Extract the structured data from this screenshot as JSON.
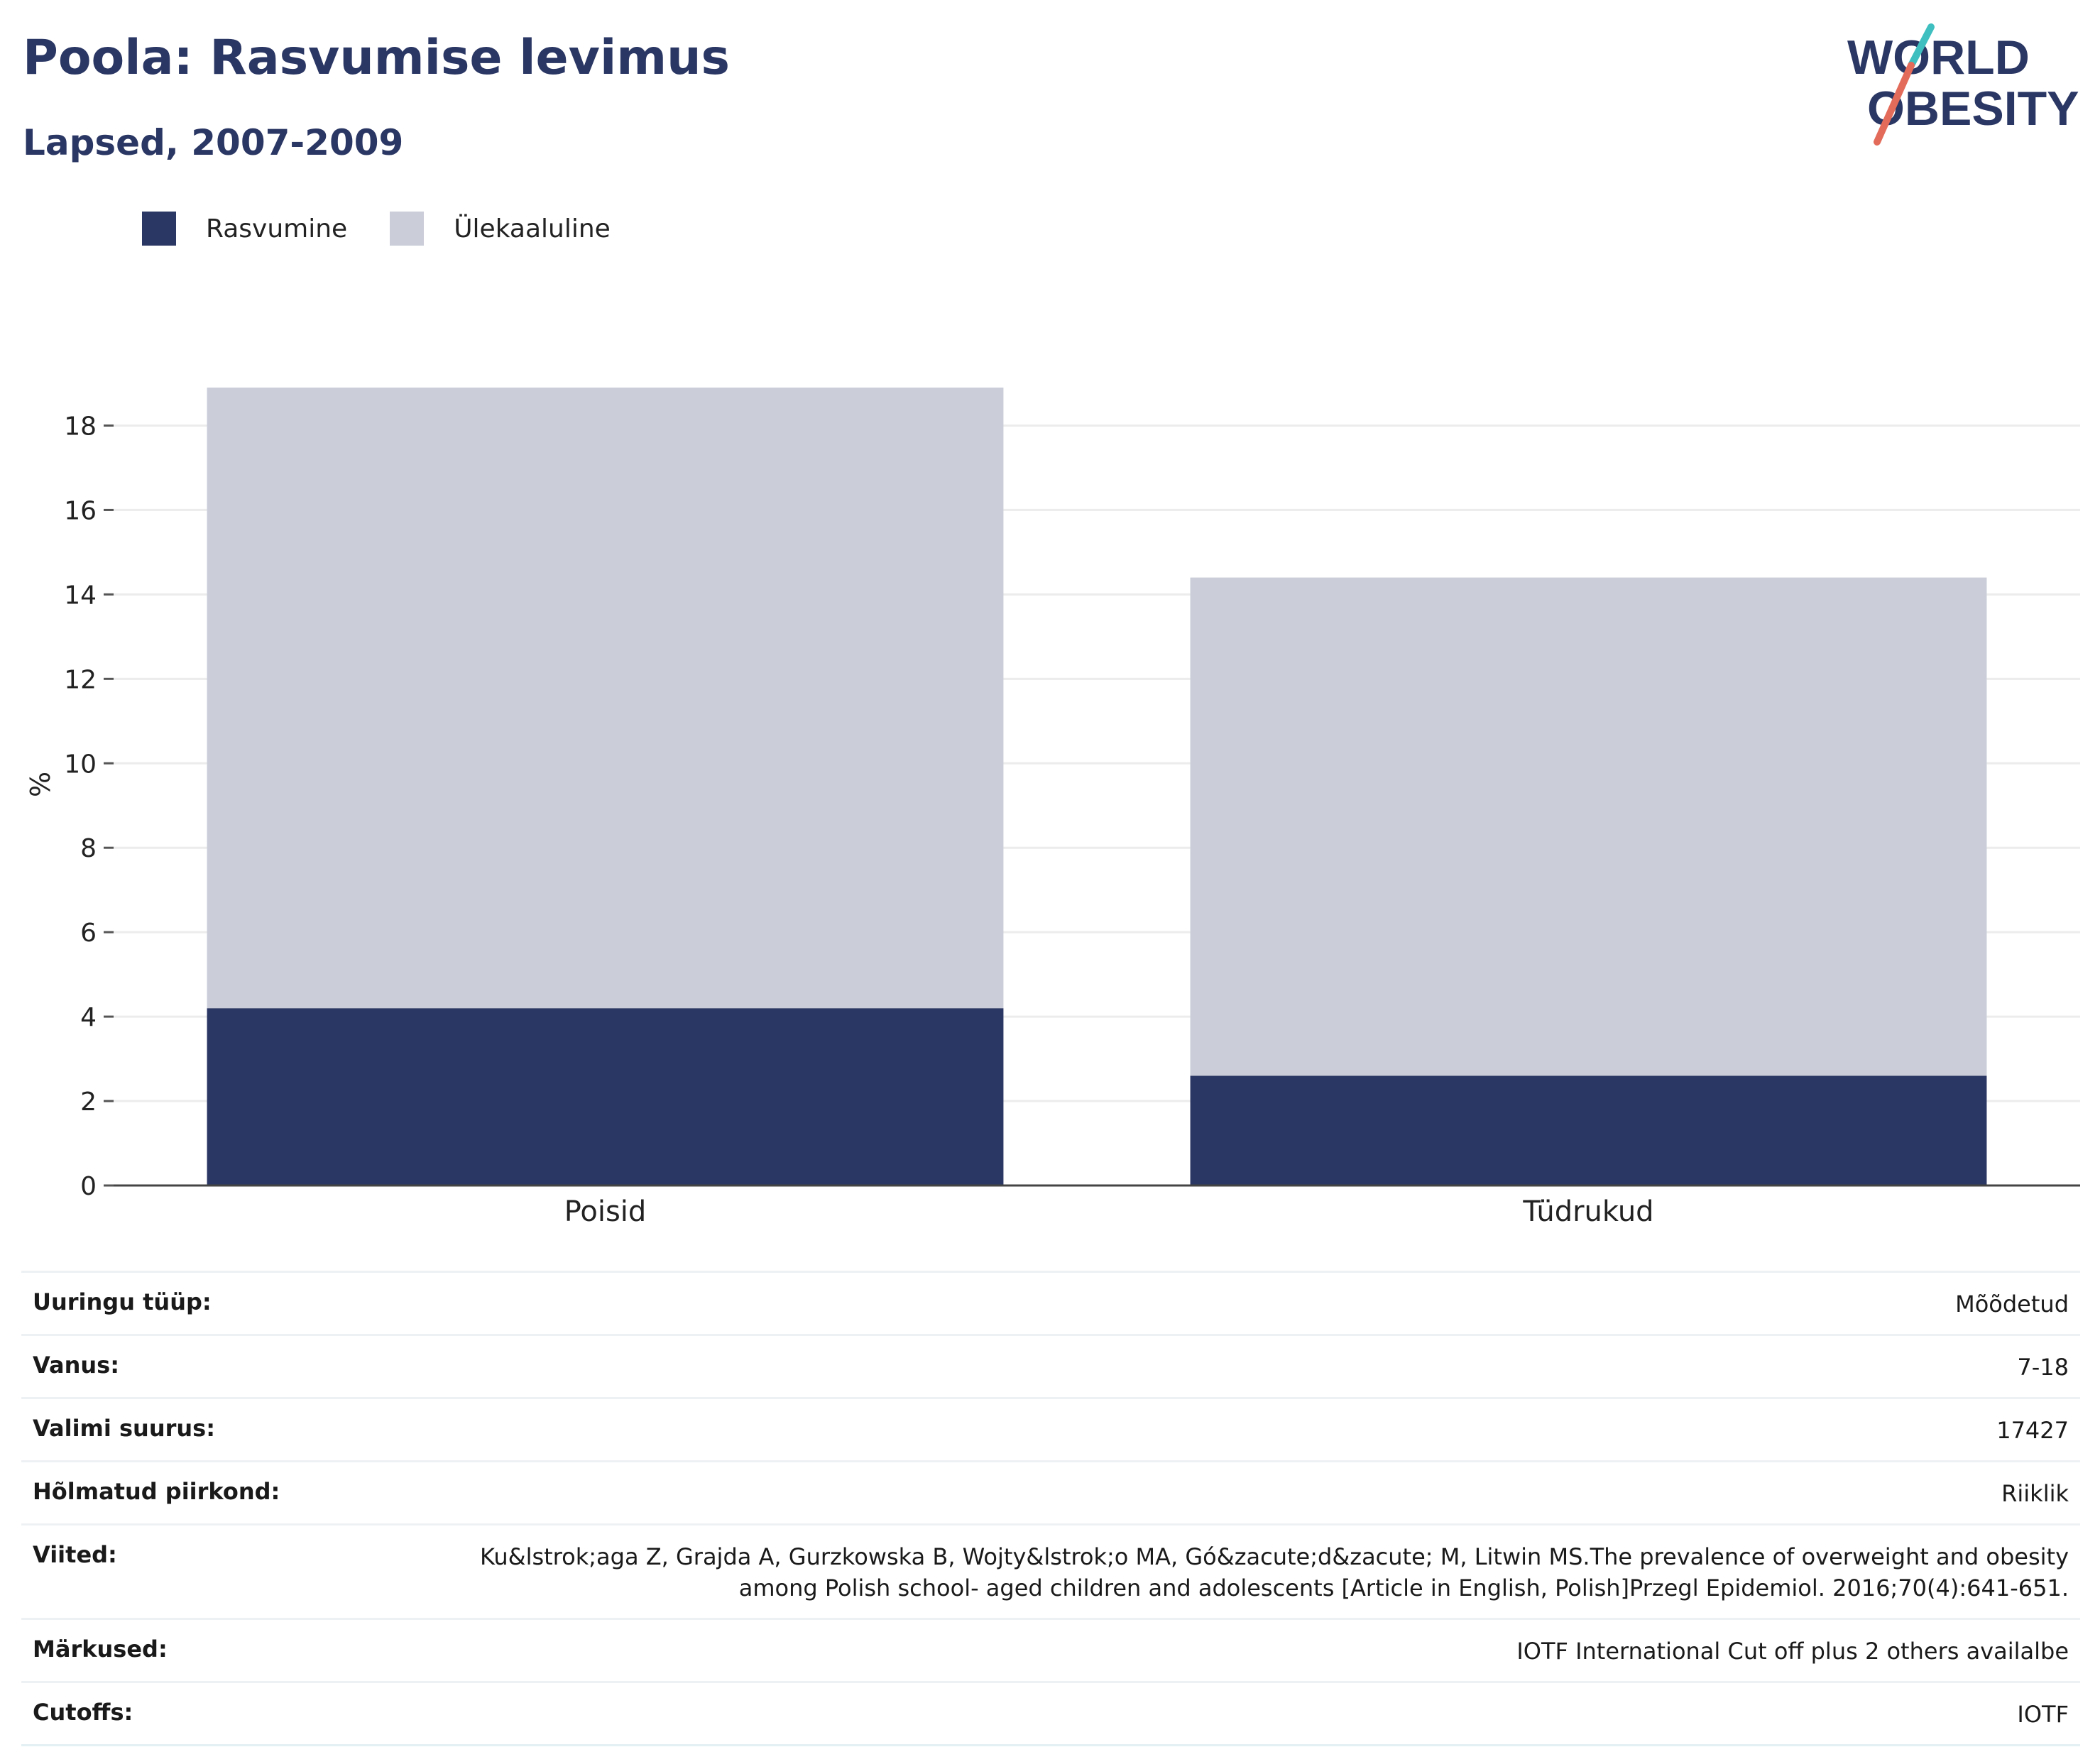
{
  "header": {
    "title": "Poola: Rasvumise levimus",
    "subtitle": "Lapsed, 2007-2009"
  },
  "logo": {
    "line1": "WORLD",
    "line2": "OBESITY"
  },
  "colors": {
    "obesity": "#2a3663",
    "overweight": "#cbcdd9",
    "text": "#2a3663",
    "grid": "#ececec",
    "logo_teal": "#3fbfbf",
    "logo_coral": "#e36b5a"
  },
  "legend": {
    "items": [
      {
        "label": "Rasvumine",
        "color": "#2a3663"
      },
      {
        "label": "Ülekaaluline",
        "color": "#cbcdd9"
      }
    ]
  },
  "chart_data": {
    "type": "bar",
    "stacked": true,
    "categories": [
      "Poisid",
      "Tüdrukud"
    ],
    "series": [
      {
        "name": "Rasvumine",
        "values": [
          4.2,
          2.6
        ]
      },
      {
        "name": "Ülekaaluline",
        "values": [
          14.7,
          11.8
        ]
      }
    ],
    "ylabel": "%",
    "ylim": [
      0,
      19
    ],
    "yticks": [
      0,
      2,
      4,
      6,
      8,
      10,
      12,
      14,
      16,
      18
    ],
    "grid": true,
    "legend_position": "top-left"
  },
  "info": [
    {
      "key": "Uuringu tüüp:",
      "value": "Mõõdetud"
    },
    {
      "key": "Vanus:",
      "value": "7-18"
    },
    {
      "key": "Valimi suurus:",
      "value": "17427"
    },
    {
      "key": "Hõlmatud piirkond:",
      "value": "Riiklik"
    },
    {
      "key": "Viited:",
      "value": "Ku&lstrok;aga Z, Grajda A, Gurzkowska B, Wojty&lstrok;o MA, Gó&zacute;d&zacute; M, Litwin MS.The prevalence of overweight and obesity among Polish school- aged children and adolescents [Article in English, Polish]Przegl Epidemiol. 2016;70(4):641-651."
    },
    {
      "key": "Märkused:",
      "value": "IOTF International Cut off plus 2 others availalbe"
    },
    {
      "key": "Cutoffs:",
      "value": "IOTF"
    }
  ]
}
